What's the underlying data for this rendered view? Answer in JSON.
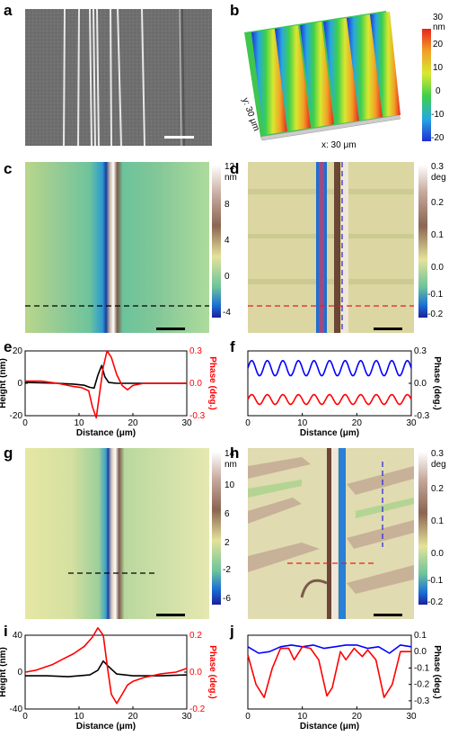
{
  "panels": {
    "a": {
      "letter": "a"
    },
    "b": {
      "letter": "b",
      "x_axis_label": "x: 30 μm",
      "y_axis_label": "y: 30 μm",
      "colorbar": {
        "unit": "nm",
        "ticks": [
          "30",
          "20",
          "10",
          "0",
          "-10",
          "-20"
        ]
      }
    },
    "c": {
      "letter": "c",
      "colorbar": {
        "unit": "nm",
        "ticks": [
          "12",
          "8",
          "4",
          "0",
          "-4"
        ]
      }
    },
    "d": {
      "letter": "d",
      "colorbar": {
        "unit": "deg",
        "ticks": [
          "0.3",
          "0.2",
          "0.1",
          "0.0",
          "-0.1",
          "-0.2"
        ]
      }
    },
    "e": {
      "letter": "e"
    },
    "f": {
      "letter": "f"
    },
    "g": {
      "letter": "g",
      "colorbar": {
        "unit": "nm",
        "ticks": [
          "14",
          "10",
          "6",
          "2",
          "-2",
          "-6"
        ]
      }
    },
    "h": {
      "letter": "h",
      "colorbar": {
        "unit": "deg",
        "ticks": [
          "0.3",
          "0.2",
          "0.1",
          "0.0",
          "-0.1",
          "-0.2"
        ]
      }
    },
    "i": {
      "letter": "i"
    },
    "j": {
      "letter": "j"
    }
  },
  "chart_data": [
    {
      "panel": "e",
      "type": "line",
      "xlabel": "Distance (μm)",
      "ylabel_left": "Height (nm)",
      "ylabel_right": "Phase (deg.)",
      "xlim": [
        0,
        30
      ],
      "ylim_left": [
        -20,
        20
      ],
      "ylim_right": [
        -0.3,
        0.3
      ],
      "x_ticks": [
        "0",
        "10",
        "20",
        "30"
      ],
      "y_ticks_left": [
        "20",
        "0",
        "-20"
      ],
      "y_ticks_right": [
        "0.3",
        "0.0",
        "-0.3"
      ],
      "series": [
        {
          "color": "#000000",
          "axis": "left",
          "x": [
            0,
            3,
            6,
            9,
            11,
            12,
            12.8,
            13.5,
            14.2,
            14.8,
            15.5,
            17,
            20,
            25,
            30
          ],
          "y": [
            0.5,
            0.3,
            0,
            -0.5,
            -1.2,
            -2.5,
            -3,
            5,
            11,
            4,
            0.5,
            0,
            0,
            0,
            0
          ]
        },
        {
          "color": "#ff0000",
          "axis": "right",
          "x": [
            0,
            3,
            6,
            9,
            10.5,
            11.8,
            12.5,
            13.2,
            13.8,
            14.5,
            15.2,
            16,
            17,
            18,
            19,
            20,
            22,
            25,
            30
          ],
          "y": [
            0.02,
            0.02,
            0.0,
            -0.03,
            -0.04,
            -0.07,
            -0.22,
            -0.32,
            -0.1,
            0.15,
            0.3,
            0.24,
            0.08,
            -0.02,
            -0.06,
            -0.02,
            0.0,
            0.0,
            0.0
          ]
        }
      ]
    },
    {
      "panel": "f",
      "type": "line",
      "xlabel": "Distance (μm)",
      "ylabel_right": "Phase (deg.)",
      "xlim": [
        0,
        30
      ],
      "ylim_right": [
        -0.3,
        0.3
      ],
      "x_ticks": [
        "0",
        "10",
        "20",
        "30"
      ],
      "y_ticks_right": [
        "0.3",
        "0.0",
        "-0.3"
      ],
      "series": [
        {
          "color": "#0000ff",
          "axis": "right",
          "form": "sinusoid",
          "periods": 10.5,
          "mean": 0.14,
          "amplitude": 0.07
        },
        {
          "color": "#ff0000",
          "axis": "right",
          "form": "sinusoid",
          "periods": 10.5,
          "mean": -0.15,
          "amplitude": 0.045
        }
      ]
    },
    {
      "panel": "i",
      "type": "line",
      "xlabel": "Distance (μm)",
      "ylabel_left": "Height (nm)",
      "ylabel_right": "Phase (deg.)",
      "xlim": [
        0,
        30
      ],
      "ylim_left": [
        -40,
        40
      ],
      "ylim_right": [
        -0.2,
        0.2
      ],
      "x_ticks": [
        "0",
        "10",
        "20",
        "30"
      ],
      "y_ticks_left": [
        "40",
        "0",
        "-40"
      ],
      "y_ticks_right": [
        "0.2",
        "0.0",
        "-0.2"
      ],
      "series": [
        {
          "color": "#000000",
          "axis": "left",
          "x": [
            0,
            4,
            8,
            12,
            13.5,
            14.5,
            15.5,
            17,
            20,
            25,
            30
          ],
          "y": [
            -4,
            -4,
            -5,
            -3,
            2,
            12,
            6,
            -2,
            -4,
            -4,
            -3
          ]
        },
        {
          "color": "#ff0000",
          "axis": "right",
          "x": [
            0,
            2,
            5,
            7,
            9,
            11,
            12.5,
            13.5,
            14.5,
            15.3,
            16,
            17,
            18,
            19,
            20,
            22,
            25,
            28,
            30
          ],
          "y": [
            0.0,
            0.01,
            0.04,
            0.07,
            0.1,
            0.14,
            0.19,
            0.24,
            0.2,
            0.02,
            -0.12,
            -0.17,
            -0.12,
            -0.07,
            -0.05,
            -0.03,
            -0.01,
            0.0,
            0.02
          ]
        }
      ]
    },
    {
      "panel": "j",
      "type": "line",
      "xlabel": "Distance (μm)",
      "ylabel_right": "Phase (deg.)",
      "xlim": [
        0,
        30
      ],
      "ylim_right": [
        -0.35,
        0.1
      ],
      "x_ticks": [
        "0",
        "10",
        "20",
        "30"
      ],
      "y_ticks_right": [
        "0.1",
        "0.0",
        "-0.1",
        "-0.2",
        "-0.3"
      ],
      "series": [
        {
          "color": "#0000ff",
          "axis": "right",
          "x": [
            0,
            2,
            4,
            6,
            8,
            10,
            12,
            14,
            16,
            18,
            20,
            22,
            24,
            26,
            28,
            30
          ],
          "y": [
            0.03,
            -0.01,
            0.0,
            0.03,
            0.04,
            0.03,
            0.04,
            0.02,
            0.03,
            0.04,
            0.04,
            0.02,
            0.03,
            -0.01,
            0.04,
            0.03
          ]
        },
        {
          "color": "#ff0000",
          "axis": "right",
          "x": [
            0,
            1.5,
            3,
            4.5,
            6,
            7.5,
            8.5,
            10,
            11.5,
            13,
            14.5,
            15.5,
            17,
            18,
            19.5,
            21,
            22,
            23.5,
            25,
            26.5,
            28,
            30
          ],
          "y": [
            -0.02,
            -0.2,
            -0.28,
            -0.1,
            0.02,
            0.02,
            -0.05,
            0.03,
            0.02,
            -0.05,
            -0.27,
            -0.22,
            0.0,
            -0.05,
            0.02,
            -0.03,
            0.01,
            -0.05,
            -0.28,
            -0.2,
            0.0,
            0.0
          ]
        }
      ]
    }
  ]
}
